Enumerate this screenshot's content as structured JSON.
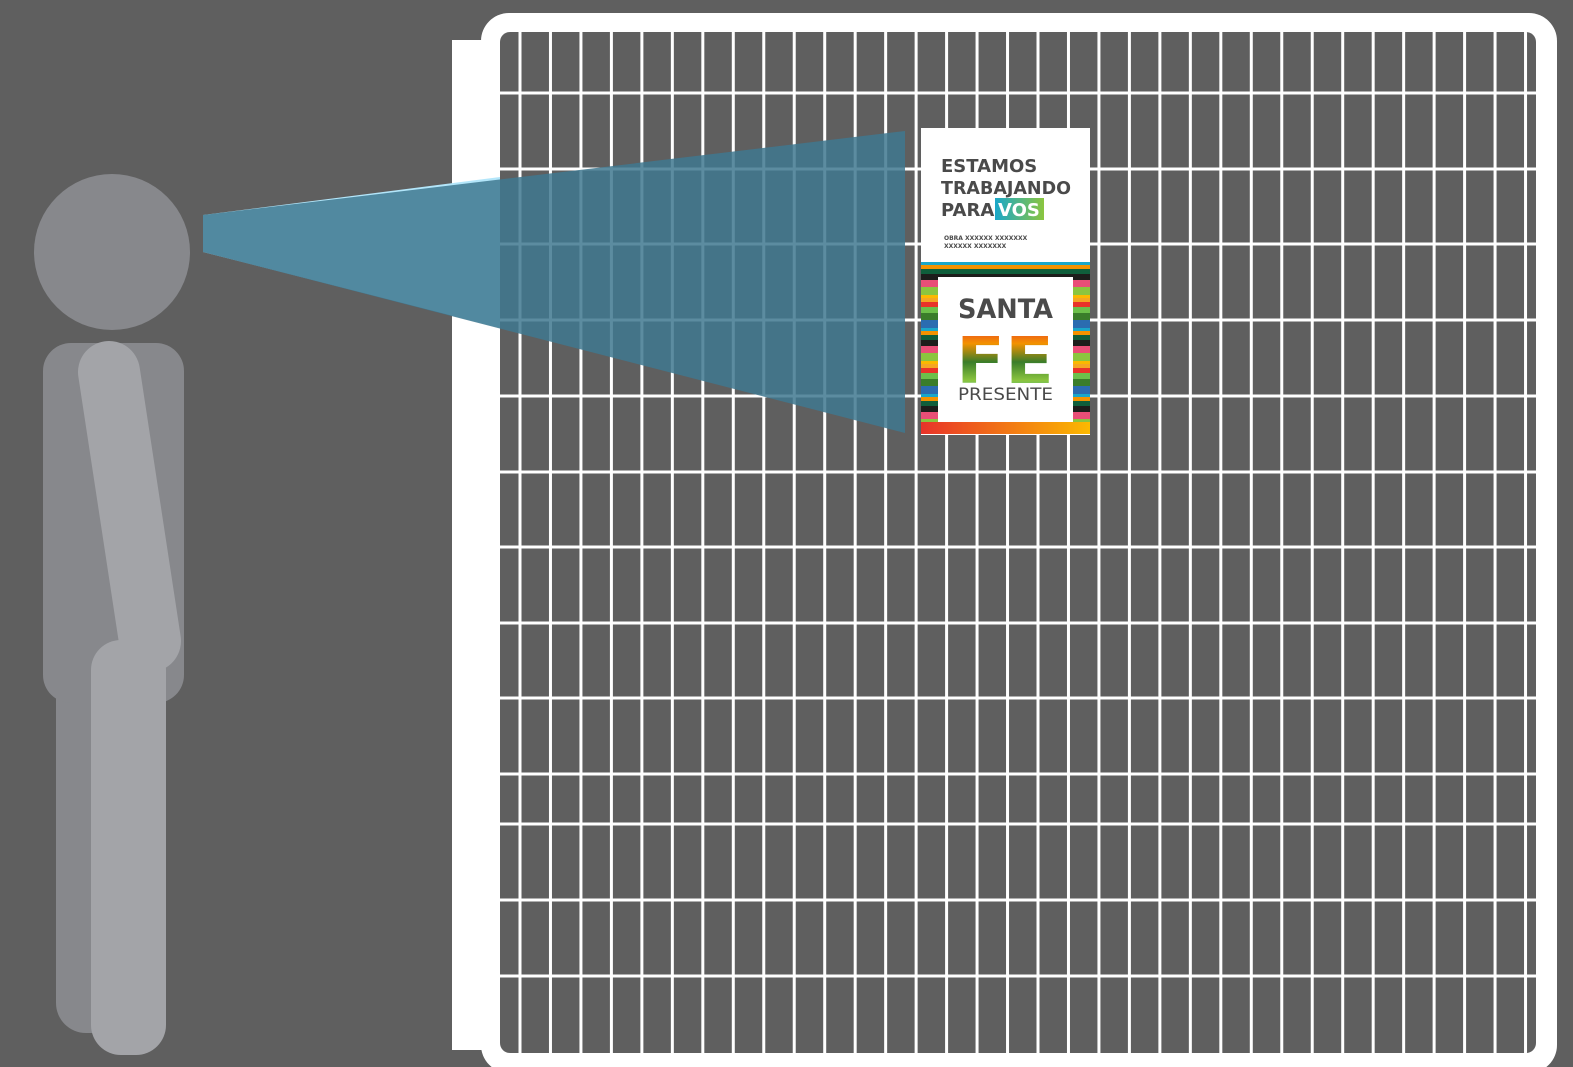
{
  "scene": {
    "background_color": "#5f5f5f",
    "fence_frame_color": "#ffffff",
    "fence_grid_color": "#ffffff",
    "fence_panel_color": "#5f5f5f",
    "fence_columns": 34,
    "fence_rows": 14,
    "person_color_dark": "#87888c",
    "person_color_light": "#a3a4a8",
    "view_cone_color": "#40788f",
    "view_cone_light_color": "#b3e6fa"
  },
  "sign": {
    "headline_line1": "ESTAMOS",
    "headline_line2": "TRABAJANDO",
    "headline_line3_prefix": "PARA",
    "headline_highlight": "VOS",
    "detail_line1": "OBRA XXXXXX XXXXXXX",
    "detail_line2": "XXXXXX XXXXXXX",
    "logo_line1": "SANTA",
    "logo_line2": "FE",
    "logo_line3": "PRESENTE",
    "text_color": "#4a4a4a",
    "highlight_color_start": "#1aa7c9",
    "highlight_color_end": "#8bc53f"
  }
}
